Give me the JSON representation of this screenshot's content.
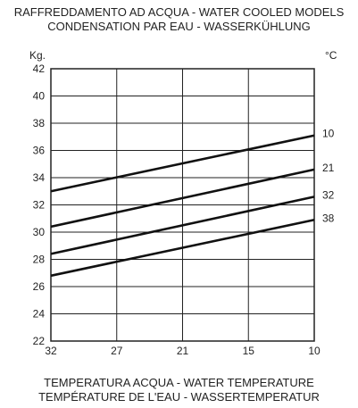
{
  "title_lines": [
    "RAFFREDDAMENTO AD ACQUA - WATER COOLED MODELS",
    "CONDENSATION PAR EAU - WASSERKÜHLUNG"
  ],
  "footer_lines": [
    "TEMPERATURA ACQUA - WATER TEMPERATURE",
    "TEMPÉRATURE DE L'EAU - WASSERTEMPERATUR"
  ],
  "chart_data": {
    "type": "line",
    "ylabel": "Kg.",
    "series_label_unit": "°C",
    "x_ticks": [
      "32",
      "27",
      "21",
      "15",
      "10"
    ],
    "x": [
      32,
      10
    ],
    "xlim": [
      32,
      10
    ],
    "ylim": [
      22,
      42
    ],
    "y_ticks": [
      42,
      40,
      38,
      36,
      34,
      32,
      30,
      28,
      26,
      24,
      22
    ],
    "grid": true,
    "series": [
      {
        "name": "10",
        "x": [
          32,
          10
        ],
        "values": [
          33.0,
          37.1
        ]
      },
      {
        "name": "21",
        "x": [
          32,
          10
        ],
        "values": [
          30.4,
          34.6
        ]
      },
      {
        "name": "32",
        "x": [
          32,
          10
        ],
        "values": [
          28.4,
          32.6
        ]
      },
      {
        "name": "38",
        "x": [
          32,
          10
        ],
        "values": [
          26.8,
          30.9
        ]
      }
    ]
  }
}
